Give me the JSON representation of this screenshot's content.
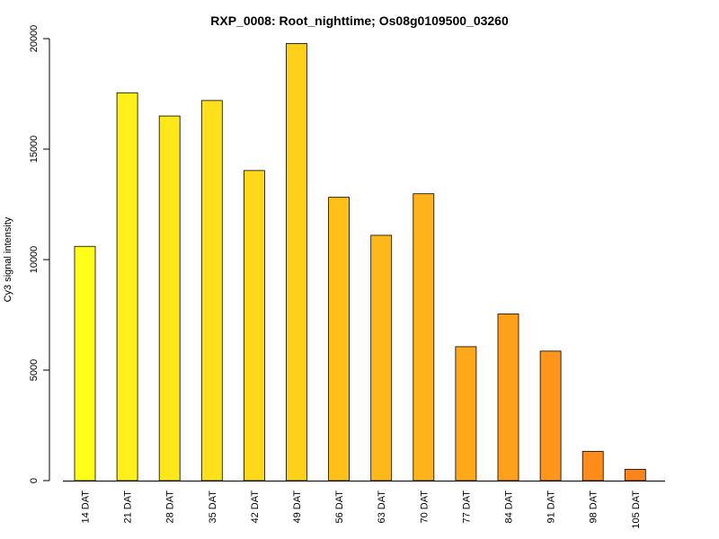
{
  "chart_data": {
    "type": "bar",
    "title": "RXP_0008: Root_nighttime; Os08g0109500_03260",
    "xlabel": "",
    "ylabel": "Cy3 signal intensity",
    "ylim": [
      0,
      20000
    ],
    "yticks": [
      0,
      5000,
      10000,
      15000,
      20000
    ],
    "categories": [
      "14 DAT",
      "21 DAT",
      "28 DAT",
      "35 DAT",
      "42 DAT",
      "49 DAT",
      "56 DAT",
      "63 DAT",
      "70 DAT",
      "77 DAT",
      "84 DAT",
      "91 DAT",
      "98 DAT",
      "105 DAT"
    ],
    "values": [
      10600,
      17550,
      16500,
      17200,
      14030,
      19780,
      12820,
      11100,
      12980,
      6060,
      7540,
      5860,
      1320,
      510
    ],
    "colors": [
      "#FFFF1A",
      "#FFF01A",
      "#FFE81A",
      "#FFE01A",
      "#FFD81A",
      "#FFD01A",
      "#FFC01A",
      "#FFB81A",
      "#FFB31A",
      "#FFA81A",
      "#FFA01A",
      "#FF951A",
      "#FF8C1A",
      "#FF841A"
    ],
    "grid": false,
    "legend": "none"
  }
}
